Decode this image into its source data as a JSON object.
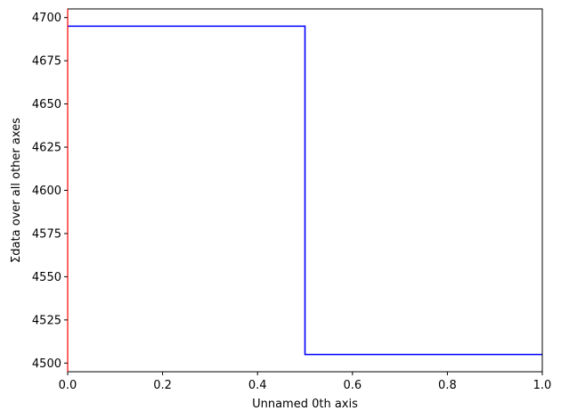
{
  "chart_data": {
    "type": "line",
    "drawstyle": "steps",
    "xlabel": "Unnamed 0th axis",
    "ylabel": "Σdata over all other axes",
    "xlim": [
      0,
      1
    ],
    "ylim": [
      4495,
      4705
    ],
    "xticks": [
      0.0,
      0.2,
      0.4,
      0.6,
      0.8,
      1.0
    ],
    "xtick_labels": [
      "0.0",
      "0.2",
      "0.4",
      "0.6",
      "0.8",
      "1.0"
    ],
    "yticks": [
      4500,
      4525,
      4550,
      4575,
      4600,
      4625,
      4650,
      4675,
      4700
    ],
    "ytick_labels": [
      "4500",
      "4525",
      "4550",
      "4575",
      "4600",
      "4625",
      "4650",
      "4675",
      "4700"
    ],
    "grid": false,
    "series": [
      {
        "color": "#0000ff",
        "bin_edges": [
          0.0,
          0.5,
          1.0
        ],
        "values": [
          4695,
          4505
        ]
      }
    ],
    "edge_line": {
      "x": 0.0,
      "color": "#ff0000"
    }
  }
}
